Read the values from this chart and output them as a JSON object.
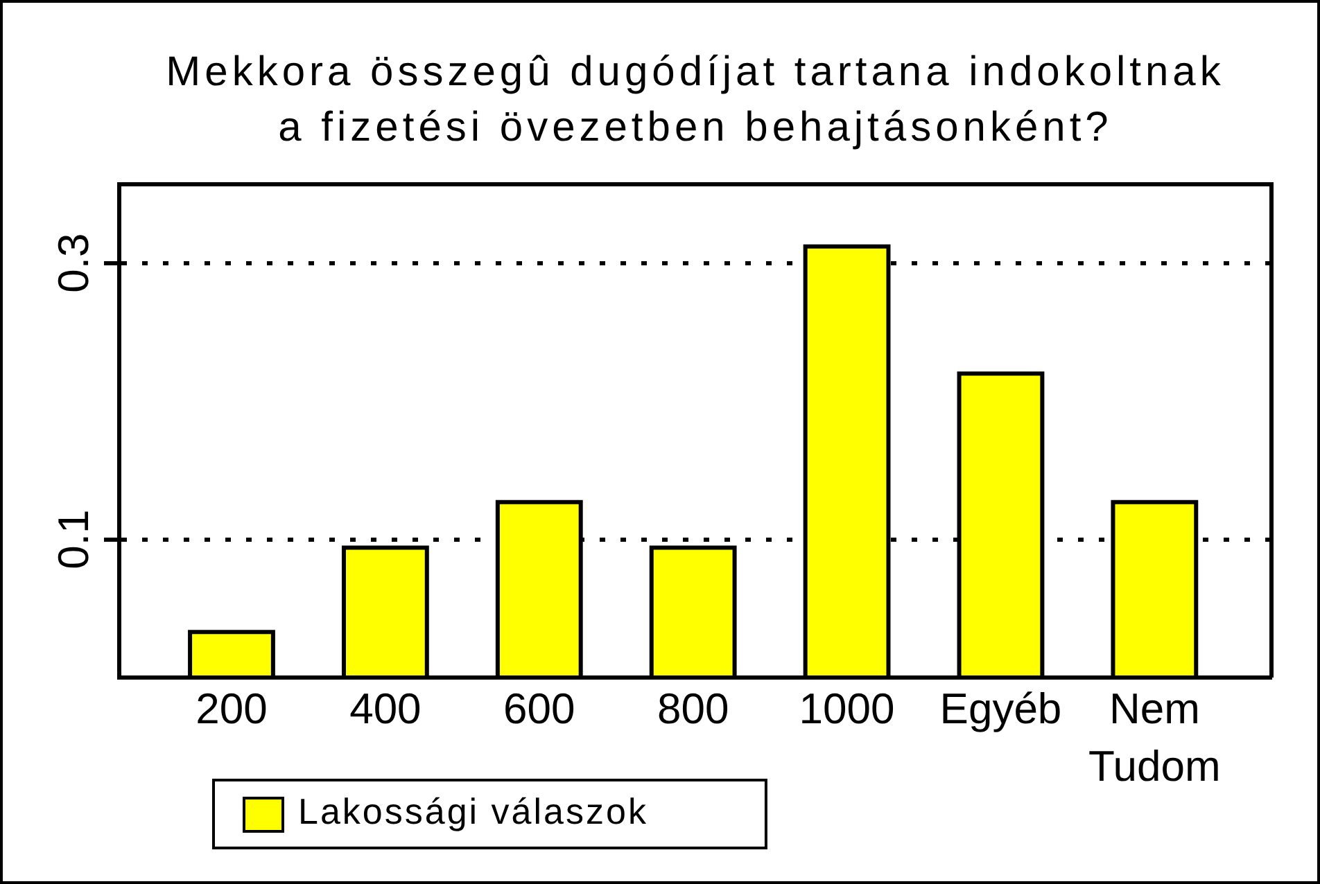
{
  "chart_data": {
    "type": "bar",
    "title": "Mekkora összegû dugódíjat tartana indokoltnak a fizetési övezetben behajtásonként?",
    "categories": [
      "200",
      "400",
      "600",
      "800",
      "1000",
      "Egyéb",
      "Nem Tudom"
    ],
    "series": [
      {
        "name": "Lakossági válaszok",
        "color": "#ffff00",
        "values": [
          0.033,
          0.094,
          0.127,
          0.094,
          0.312,
          0.22,
          0.127
        ]
      }
    ],
    "ylim": [
      0,
      0.357
    ],
    "yticks": [
      0.1,
      0.3
    ],
    "grid": "y",
    "legend": "bottom left"
  }
}
